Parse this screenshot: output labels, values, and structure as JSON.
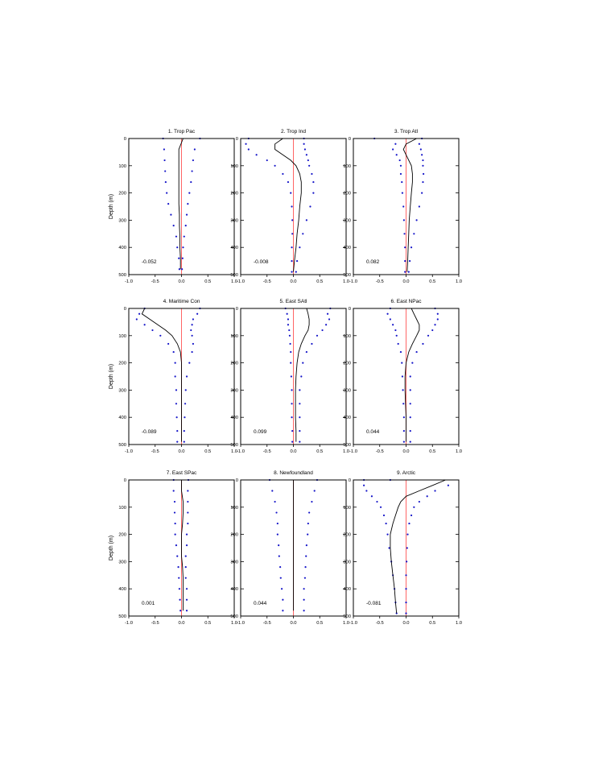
{
  "figure": {
    "colors": {
      "mean": "#000000",
      "bounds": "#1414c8",
      "zero": "#ff6666"
    },
    "depth_ticks": [
      "0",
      "100",
      "200",
      "300",
      "400",
      "500"
    ],
    "x_ticks": [
      "-1.0",
      "-0.5",
      "0.0",
      "0.5",
      "1.0"
    ]
  },
  "chart_data": [
    {
      "type": "line",
      "title": "1. Trop Pac",
      "ylabel": "Depth (m)",
      "xlabel": "",
      "annotation": "-0.052",
      "xlim": [
        -1,
        1
      ],
      "ylim": [
        0,
        500
      ],
      "y_inverted": true,
      "depth": [
        0,
        40,
        80,
        120,
        160,
        200,
        240,
        280,
        320,
        360,
        400,
        440,
        480
      ],
      "series": [
        {
          "role": "mean",
          "values": [
            0.03,
            -0.05,
            -0.05,
            -0.05,
            -0.05,
            -0.05,
            -0.05,
            -0.04,
            -0.04,
            -0.03,
            -0.03,
            -0.02,
            -0.02
          ]
        },
        {
          "role": "lower",
          "values": [
            -0.35,
            -0.33,
            -0.32,
            -0.31,
            -0.3,
            -0.28,
            -0.25,
            -0.2,
            -0.15,
            -0.1,
            -0.08,
            -0.05,
            -0.04
          ]
        },
        {
          "role": "upper",
          "values": [
            0.35,
            0.25,
            0.22,
            0.2,
            0.18,
            0.15,
            0.12,
            0.1,
            0.08,
            0.05,
            0.03,
            0.02,
            0.01
          ]
        }
      ]
    },
    {
      "type": "line",
      "title": "2. Trop Ind",
      "ylabel": "",
      "xlabel": "",
      "annotation": "-0.008",
      "xlim": [
        -1,
        1
      ],
      "ylim": [
        0,
        500
      ],
      "y_inverted": true,
      "depth": [
        0,
        20,
        40,
        60,
        80,
        100,
        130,
        160,
        200,
        250,
        300,
        350,
        400,
        450,
        490
      ],
      "series": [
        {
          "role": "mean",
          "values": [
            -0.2,
            -0.35,
            -0.35,
            -0.2,
            -0.05,
            0.05,
            0.12,
            0.15,
            0.15,
            0.12,
            0.1,
            0.07,
            0.05,
            0.02,
            0.0
          ]
        },
        {
          "role": "lower",
          "values": [
            -0.85,
            -0.9,
            -0.85,
            -0.7,
            -0.5,
            -0.35,
            -0.2,
            -0.1,
            -0.05,
            -0.03,
            -0.02,
            -0.02,
            -0.03,
            -0.03,
            -0.03
          ]
        },
        {
          "role": "upper",
          "values": [
            0.2,
            0.2,
            0.22,
            0.25,
            0.28,
            0.3,
            0.35,
            0.38,
            0.38,
            0.32,
            0.25,
            0.18,
            0.12,
            0.07,
            0.05
          ]
        }
      ]
    },
    {
      "type": "line",
      "title": "3. Trop Atl",
      "ylabel": "",
      "xlabel": "",
      "annotation": "0.082",
      "xlim": [
        -1,
        1
      ],
      "ylim": [
        0,
        500
      ],
      "y_inverted": true,
      "depth": [
        0,
        20,
        40,
        60,
        80,
        100,
        130,
        160,
        200,
        250,
        300,
        350,
        400,
        450,
        490
      ],
      "series": [
        {
          "role": "mean",
          "values": [
            0.2,
            0.0,
            -0.05,
            0.0,
            0.05,
            0.1,
            0.12,
            0.12,
            0.1,
            0.08,
            0.06,
            0.05,
            0.04,
            0.03,
            0.02
          ]
        },
        {
          "role": "lower",
          "values": [
            -0.6,
            -0.2,
            -0.25,
            -0.18,
            -0.12,
            -0.1,
            -0.1,
            -0.08,
            -0.07,
            -0.05,
            -0.04,
            -0.03,
            -0.02,
            -0.02,
            -0.02
          ]
        },
        {
          "role": "upper",
          "values": [
            0.3,
            0.25,
            0.28,
            0.3,
            0.32,
            0.32,
            0.33,
            0.32,
            0.3,
            0.25,
            0.2,
            0.15,
            0.1,
            0.07,
            0.05
          ]
        }
      ]
    },
    {
      "type": "line",
      "title": "4. Maritime Con",
      "ylabel": "Depth (m)",
      "xlabel": "",
      "annotation": "-0.089",
      "xlim": [
        -1,
        1
      ],
      "ylim": [
        0,
        500
      ],
      "y_inverted": true,
      "depth": [
        0,
        20,
        40,
        60,
        80,
        100,
        130,
        160,
        200,
        250,
        300,
        350,
        400,
        450,
        490
      ],
      "series": [
        {
          "role": "mean",
          "values": [
            -0.7,
            -0.75,
            -0.6,
            -0.45,
            -0.3,
            -0.18,
            -0.08,
            -0.02,
            0.0,
            0.0,
            0.0,
            0.0,
            0.0,
            0.0,
            0.0
          ]
        },
        {
          "role": "lower",
          "values": [
            -0.7,
            -0.8,
            -0.85,
            -0.7,
            -0.55,
            -0.4,
            -0.25,
            -0.15,
            -0.12,
            -0.12,
            -0.1,
            -0.1,
            -0.09,
            -0.08,
            -0.08
          ]
        },
        {
          "role": "upper",
          "values": [
            0.35,
            0.3,
            0.22,
            0.2,
            0.18,
            0.2,
            0.22,
            0.2,
            0.15,
            0.1,
            0.08,
            0.07,
            0.06,
            0.05,
            0.05
          ]
        }
      ]
    },
    {
      "type": "line",
      "title": "5. East SAtl",
      "ylabel": "",
      "xlabel": "",
      "annotation": "0.099",
      "xlim": [
        -1,
        1
      ],
      "ylim": [
        0,
        500
      ],
      "y_inverted": true,
      "depth": [
        0,
        20,
        40,
        60,
        80,
        100,
        130,
        160,
        200,
        250,
        300,
        350,
        400,
        450,
        490
      ],
      "series": [
        {
          "role": "mean",
          "values": [
            0.25,
            0.28,
            0.3,
            0.3,
            0.28,
            0.22,
            0.15,
            0.1,
            0.07,
            0.05,
            0.04,
            0.04,
            0.04,
            0.05,
            0.05
          ]
        },
        {
          "role": "lower",
          "values": [
            -0.15,
            -0.12,
            -0.1,
            -0.1,
            -0.08,
            -0.07,
            -0.06,
            -0.05,
            -0.05,
            -0.04,
            -0.03,
            -0.03,
            -0.03,
            -0.02,
            -0.02
          ]
        },
        {
          "role": "upper",
          "values": [
            0.7,
            0.65,
            0.68,
            0.62,
            0.55,
            0.45,
            0.35,
            0.25,
            0.18,
            0.15,
            0.12,
            0.12,
            0.12,
            0.12,
            0.12
          ]
        }
      ]
    },
    {
      "type": "line",
      "title": "6. East NPac",
      "ylabel": "",
      "xlabel": "",
      "annotation": "0.044",
      "xlim": [
        -1,
        1
      ],
      "ylim": [
        0,
        500
      ],
      "y_inverted": true,
      "depth": [
        0,
        20,
        40,
        60,
        80,
        100,
        130,
        160,
        200,
        250,
        300,
        350,
        400,
        450,
        490
      ],
      "series": [
        {
          "role": "mean",
          "values": [
            0.1,
            0.15,
            0.2,
            0.25,
            0.25,
            0.2,
            0.12,
            0.05,
            0.0,
            -0.02,
            -0.02,
            -0.01,
            0.0,
            0.0,
            0.0
          ]
        },
        {
          "role": "lower",
          "values": [
            -0.3,
            -0.35,
            -0.3,
            -0.25,
            -0.2,
            -0.18,
            -0.15,
            -0.1,
            -0.08,
            -0.07,
            -0.06,
            -0.05,
            -0.04,
            -0.04,
            -0.04
          ]
        },
        {
          "role": "upper",
          "values": [
            0.55,
            0.6,
            0.6,
            0.55,
            0.5,
            0.42,
            0.32,
            0.2,
            0.12,
            0.08,
            0.08,
            0.08,
            0.08,
            0.08,
            0.08
          ]
        }
      ]
    },
    {
      "type": "line",
      "title": "7. East SPac",
      "ylabel": "Depth (m)",
      "xlabel": "",
      "annotation": "0.001",
      "xlim": [
        -1,
        1
      ],
      "ylim": [
        0,
        500
      ],
      "y_inverted": true,
      "depth": [
        0,
        40,
        80,
        120,
        160,
        200,
        240,
        280,
        320,
        360,
        400,
        440,
        480
      ],
      "series": [
        {
          "role": "mean",
          "values": [
            0.0,
            0.0,
            0.03,
            0.03,
            0.02,
            0.0,
            0.0,
            0.0,
            0.02,
            0.03,
            0.03,
            0.03,
            0.03
          ]
        },
        {
          "role": "lower",
          "values": [
            -0.15,
            -0.15,
            -0.13,
            -0.13,
            -0.12,
            -0.12,
            -0.1,
            -0.08,
            -0.06,
            -0.05,
            -0.04,
            -0.03,
            -0.02
          ]
        },
        {
          "role": "upper",
          "values": [
            0.13,
            0.12,
            0.12,
            0.12,
            0.12,
            0.1,
            0.1,
            0.08,
            0.08,
            0.08,
            0.1,
            0.1,
            0.1
          ]
        }
      ]
    },
    {
      "type": "line",
      "title": "8. Newfoundland",
      "ylabel": "",
      "xlabel": "",
      "annotation": "0.044",
      "xlim": [
        -1,
        1
      ],
      "ylim": [
        0,
        500
      ],
      "y_inverted": true,
      "depth": [
        0,
        40,
        80,
        120,
        160,
        200,
        240,
        280,
        320,
        360,
        400,
        440,
        480
      ],
      "series": [
        {
          "role": "mean",
          "values": [
            0.0,
            0.0,
            0.0,
            0.0,
            0.0,
            0.0,
            0.0,
            0.0,
            0.0,
            0.0,
            0.0,
            0.0,
            0.0
          ]
        },
        {
          "role": "lower",
          "values": [
            -0.45,
            -0.4,
            -0.35,
            -0.32,
            -0.3,
            -0.3,
            -0.28,
            -0.27,
            -0.25,
            -0.24,
            -0.22,
            -0.2,
            -0.2
          ]
        },
        {
          "role": "upper",
          "values": [
            0.45,
            0.4,
            0.35,
            0.3,
            0.28,
            0.27,
            0.25,
            0.24,
            0.23,
            0.22,
            0.2,
            0.2,
            0.2
          ]
        }
      ]
    },
    {
      "type": "line",
      "title": "9. Arctic",
      "ylabel": "",
      "xlabel": "",
      "annotation": "-0.081",
      "xlim": [
        -1,
        1
      ],
      "ylim": [
        0,
        500
      ],
      "y_inverted": true,
      "depth": [
        0,
        20,
        40,
        60,
        80,
        100,
        130,
        160,
        200,
        250,
        300,
        350,
        400,
        450,
        490
      ],
      "series": [
        {
          "role": "mean",
          "values": [
            0.75,
            0.5,
            0.25,
            0.0,
            -0.1,
            -0.15,
            -0.2,
            -0.25,
            -0.3,
            -0.3,
            -0.28,
            -0.25,
            -0.22,
            -0.2,
            -0.18
          ]
        },
        {
          "role": "lower",
          "values": [
            -0.8,
            -0.8,
            -0.75,
            -0.65,
            -0.55,
            -0.48,
            -0.42,
            -0.38,
            -0.35,
            -0.32,
            -0.28,
            -0.25,
            -0.22,
            -0.2,
            -0.18
          ]
        },
        {
          "role": "upper",
          "values": [
            -0.3,
            0.8,
            0.55,
            0.4,
            0.25,
            0.15,
            0.1,
            0.06,
            0.03,
            0.02,
            0.01,
            0.0,
            0.0,
            0.0,
            0.0
          ]
        }
      ]
    }
  ]
}
